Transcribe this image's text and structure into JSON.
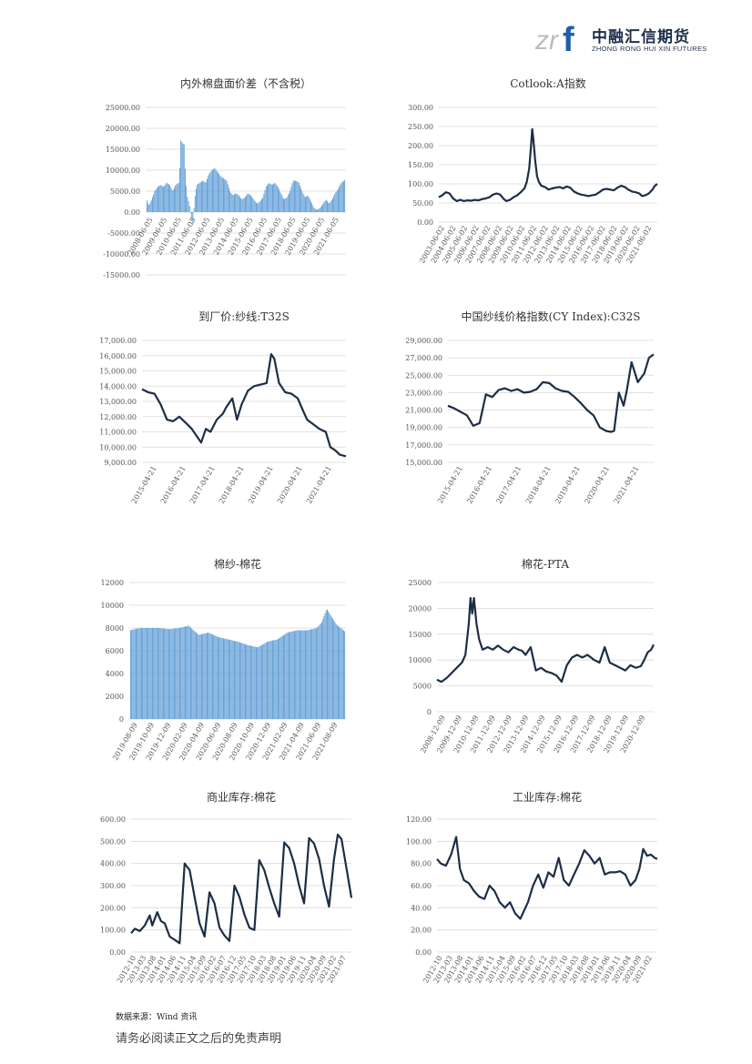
{
  "header": {
    "logo_mark": "zrf",
    "company_cn": "中融汇信期货",
    "company_en": "ZHONG RONG HUI XIN FUTURES",
    "colors": {
      "mark_gray": "#b9bcc2",
      "mark_blue": "#1f5fa8",
      "text": "#1f2e4a"
    }
  },
  "footer": {
    "source": "数据来源：Wind 资讯",
    "disclaimer": "请务必阅读正文之后的免责声明"
  },
  "chart_data": [
    {
      "id": "c1",
      "type": "bar",
      "title": "内外棉盘面价差（不含税）",
      "color": "#5b9bd5",
      "ylim": [
        -15000,
        25000
      ],
      "yticks": [
        25000,
        20000,
        15000,
        10000,
        5000,
        0,
        -5000,
        -10000,
        -15000
      ],
      "ytick_labels": [
        "25000.00",
        "20000.00",
        "15000.00",
        "10000.00",
        "5000.00",
        "0.00",
        "-5000.00",
        "-10000.00",
        "-15000.00"
      ],
      "x_start": 2008.43,
      "x_end": 2021.75,
      "xtick_labels": [
        "2008-06-05",
        "2009-06-05",
        "2010-06-05",
        "2011-06-05",
        "2012-06-05",
        "2013-06-05",
        "2014-06-05",
        "2015-06-05",
        "2016-06-05",
        "2017-06-05",
        "2018-06-05",
        "2019-06-05",
        "2020-06-05",
        "2021-06-05"
      ],
      "x": [
        2008.43,
        2008.6,
        2008.8,
        2009.0,
        2009.2,
        2009.4,
        2009.6,
        2009.8,
        2010.0,
        2010.2,
        2010.4,
        2010.6,
        2010.7,
        2010.75,
        2010.85,
        2010.95,
        2011.05,
        2011.15,
        2011.3,
        2011.45,
        2011.55,
        2011.65,
        2011.8,
        2012.0,
        2012.2,
        2012.4,
        2012.6,
        2012.8,
        2013.0,
        2013.2,
        2013.4,
        2013.6,
        2013.8,
        2014.0,
        2014.2,
        2014.4,
        2014.6,
        2014.8,
        2015.0,
        2015.2,
        2015.4,
        2015.6,
        2015.8,
        2016.0,
        2016.2,
        2016.4,
        2016.6,
        2016.8,
        2017.0,
        2017.2,
        2017.4,
        2017.6,
        2017.8,
        2018.0,
        2018.2,
        2018.4,
        2018.6,
        2018.8,
        2019.0,
        2019.2,
        2019.4,
        2019.6,
        2019.8,
        2020.0,
        2020.2,
        2020.4,
        2020.6,
        2020.8,
        2021.0,
        2021.2,
        2021.4,
        2021.6,
        2021.75
      ],
      "values": [
        3500,
        1500,
        3000,
        5000,
        6000,
        6500,
        6000,
        7000,
        6500,
        5000,
        6500,
        7000,
        12000,
        18000,
        16000,
        17000,
        9000,
        4000,
        2000,
        -1500,
        -3000,
        3000,
        6500,
        7000,
        7500,
        7000,
        9000,
        10000,
        10500,
        9500,
        8500,
        8000,
        7500,
        5000,
        4000,
        4500,
        4000,
        3000,
        3500,
        4500,
        4000,
        3000,
        2000,
        2500,
        3500,
        6000,
        7000,
        6500,
        7000,
        6000,
        4500,
        3000,
        3500,
        5000,
        7500,
        7500,
        7000,
        5000,
        3500,
        4000,
        2500,
        1000,
        500,
        1000,
        2000,
        3000,
        2000,
        3000,
        4500,
        5500,
        7000,
        7500,
        8000
      ]
    },
    {
      "id": "c2",
      "type": "line",
      "title": "Cotlook:A指数",
      "color": "#1c2e45",
      "ylim": [
        0,
        300
      ],
      "yticks": [
        0,
        50,
        100,
        150,
        200,
        250,
        300
      ],
      "ytick_labels": [
        "0.00",
        "50.00",
        "100.00",
        "150.00",
        "200.00",
        "250.00",
        "300.00"
      ],
      "x_start": 2003.42,
      "x_end": 2021.5,
      "xtick_labels": [
        "2003-06-02",
        "2004-06-02",
        "2005-06-02",
        "2006-06-02",
        "2007-06-02",
        "2008-06-02",
        "2009-06-02",
        "2010-06-02",
        "2011-06-02",
        "2012-06-02",
        "2013-06-02",
        "2014-06-02",
        "2015-06-02",
        "2016-06-02",
        "2017-06-02",
        "2018-06-02",
        "2019-06-02",
        "2020-06-02",
        "2021-06-02"
      ],
      "x": [
        2003.42,
        2003.7,
        2004.0,
        2004.3,
        2004.6,
        2004.9,
        2005.2,
        2005.5,
        2005.8,
        2006.1,
        2006.4,
        2006.7,
        2007.0,
        2007.3,
        2007.6,
        2007.9,
        2008.2,
        2008.5,
        2008.8,
        2009.0,
        2009.3,
        2009.6,
        2009.9,
        2010.2,
        2010.5,
        2010.7,
        2010.9,
        2011.05,
        2011.15,
        2011.25,
        2011.4,
        2011.55,
        2011.7,
        2011.9,
        2012.2,
        2012.5,
        2012.8,
        2013.1,
        2013.4,
        2013.7,
        2014.0,
        2014.3,
        2014.6,
        2014.9,
        2015.2,
        2015.5,
        2015.8,
        2016.1,
        2016.4,
        2016.7,
        2017.0,
        2017.3,
        2017.6,
        2017.9,
        2018.2,
        2018.5,
        2018.8,
        2019.1,
        2019.4,
        2019.7,
        2020.0,
        2020.25,
        2020.5,
        2020.8,
        2021.1,
        2021.3,
        2021.5
      ],
      "values": [
        65,
        70,
        78,
        75,
        62,
        55,
        58,
        55,
        57,
        56,
        58,
        57,
        60,
        62,
        65,
        72,
        75,
        72,
        60,
        55,
        58,
        65,
        70,
        78,
        88,
        105,
        140,
        200,
        243,
        215,
        160,
        120,
        105,
        95,
        92,
        85,
        88,
        90,
        92,
        88,
        93,
        90,
        80,
        75,
        72,
        70,
        68,
        70,
        72,
        78,
        85,
        87,
        85,
        83,
        90,
        95,
        92,
        85,
        80,
        78,
        75,
        68,
        70,
        75,
        85,
        95,
        100
      ]
    },
    {
      "id": "c3",
      "type": "line",
      "title": "到厂价:纱线:T32S",
      "color": "#1c2e45",
      "ylim": [
        9000,
        17000
      ],
      "yticks": [
        9000,
        10000,
        11000,
        12000,
        13000,
        14000,
        15000,
        16000,
        17000
      ],
      "ytick_labels": [
        "9,000.00",
        "10,000.00",
        "11,000.00",
        "12,000.00",
        "13,000.00",
        "14,000.00",
        "15,000.00",
        "16,000.00",
        "17,000.00"
      ],
      "x_start": 2015.3,
      "x_end": 2021.85,
      "xtick_labels": [
        "2015-04-21",
        "2016-04-21",
        "2017-04-21",
        "2018-04-21",
        "2019-04-21",
        "2020-04-21",
        "2021-04-21"
      ],
      "x": [
        2015.3,
        2015.5,
        2015.7,
        2015.9,
        2016.1,
        2016.3,
        2016.5,
        2016.7,
        2016.9,
        2017.0,
        2017.2,
        2017.35,
        2017.5,
        2017.7,
        2017.9,
        2018.0,
        2018.2,
        2018.35,
        2018.5,
        2018.7,
        2018.9,
        2019.1,
        2019.3,
        2019.45,
        2019.55,
        2019.7,
        2019.9,
        2020.1,
        2020.3,
        2020.45,
        2020.6,
        2020.8,
        2021.0,
        2021.2,
        2021.35,
        2021.5,
        2021.65,
        2021.85
      ],
      "values": [
        13800,
        13600,
        13500,
        12800,
        11800,
        11700,
        12000,
        11600,
        11200,
        10900,
        10300,
        11200,
        11000,
        11800,
        12200,
        12600,
        13200,
        11800,
        12800,
        13700,
        14000,
        14100,
        14200,
        16100,
        15800,
        14200,
        13600,
        13500,
        13200,
        12500,
        11800,
        11500,
        11200,
        11000,
        10000,
        9800,
        9500,
        9400
      ]
    },
    {
      "id": "c4",
      "type": "line",
      "title": "中国纱线价格指数(CY Index):C32S",
      "color": "#1c2e45",
      "ylim": [
        15000,
        29000
      ],
      "yticks": [
        15000,
        17000,
        19000,
        21000,
        23000,
        25000,
        27000,
        29000
      ],
      "ytick_labels": [
        "15,000.00",
        "17,000.00",
        "19,000.00",
        "21,000.00",
        "23,000.00",
        "25,000.00",
        "27,000.00",
        "29,000.00"
      ],
      "x_start": 2015.3,
      "x_end": 2021.8,
      "xtick_labels": [
        "2015-04-21",
        "2016-04-21",
        "2017-04-21",
        "2018-04-21",
        "2019-04-21",
        "2020-04-21",
        "2021-04-21"
      ],
      "x": [
        2015.3,
        2015.5,
        2015.7,
        2015.9,
        2016.1,
        2016.3,
        2016.5,
        2016.7,
        2016.9,
        2017.1,
        2017.3,
        2017.5,
        2017.7,
        2017.9,
        2018.1,
        2018.3,
        2018.5,
        2018.7,
        2018.9,
        2019.1,
        2019.3,
        2019.5,
        2019.7,
        2019.9,
        2020.1,
        2020.3,
        2020.45,
        2020.55,
        2020.7,
        2020.85,
        2020.95,
        2021.1,
        2021.3,
        2021.5,
        2021.65,
        2021.8
      ],
      "values": [
        21500,
        21200,
        20800,
        20400,
        19200,
        19500,
        22800,
        22500,
        23300,
        23500,
        23200,
        23400,
        23000,
        23100,
        23400,
        24200,
        24100,
        23500,
        23200,
        23100,
        22500,
        21800,
        21000,
        20400,
        19000,
        18600,
        18500,
        18600,
        23000,
        21500,
        23200,
        26500,
        24200,
        25200,
        27000,
        27400
      ]
    },
    {
      "id": "c5",
      "type": "bar",
      "title": "棉纱-棉花",
      "color": "#5b9bd5",
      "ylim": [
        0,
        12000
      ],
      "yticks": [
        0,
        2000,
        4000,
        6000,
        8000,
        10000,
        12000
      ],
      "ytick_labels": [
        "0",
        "2000",
        "4000",
        "6000",
        "8000",
        "10000",
        "12000"
      ],
      "x_start": 2019.6,
      "x_end": 2021.8,
      "xtick_labels": [
        "2019-08-09",
        "2019-10-09",
        "2019-12-09",
        "2020-02-09",
        "2020-04-09",
        "2020-06-09",
        "2020-08-09",
        "2020-10-09",
        "2020-12-09",
        "2021-02-09",
        "2021-04-09",
        "2021-06-09",
        "2021-08-09"
      ],
      "x": [
        2019.6,
        2019.7,
        2019.8,
        2019.9,
        2020.0,
        2020.1,
        2020.2,
        2020.3,
        2020.4,
        2020.5,
        2020.6,
        2020.7,
        2020.8,
        2020.9,
        2021.0,
        2021.1,
        2021.2,
        2021.3,
        2021.4,
        2021.5,
        2021.55,
        2021.6,
        2021.7,
        2021.8
      ],
      "values": [
        7800,
        8000,
        8000,
        8000,
        7900,
        8000,
        8200,
        7400,
        7600,
        7200,
        7000,
        6800,
        6500,
        6300,
        6800,
        7000,
        7600,
        7800,
        7800,
        8000,
        8500,
        9700,
        8300,
        7600
      ]
    },
    {
      "id": "c6",
      "type": "line",
      "title": "棉花-PTA",
      "color": "#1c2e45",
      "ylim": [
        0,
        25000
      ],
      "yticks": [
        0,
        5000,
        10000,
        15000,
        20000,
        25000
      ],
      "ytick_labels": [
        "0",
        "5000",
        "10000",
        "15000",
        "20000",
        "25000"
      ],
      "x_start": 2008.95,
      "x_end": 2021.55,
      "xtick_labels": [
        "2008-12-09",
        "2009-12-09",
        "2010-12-09",
        "2011-12-09",
        "2012-12-09",
        "2013-12-09",
        "2014-12-09",
        "2015-12-09",
        "2016-12-09",
        "2017-12-09",
        "2018-12-09",
        "2019-12-09",
        "2020-12-09"
      ],
      "x": [
        2008.95,
        2009.2,
        2009.5,
        2009.8,
        2010.1,
        2010.4,
        2010.6,
        2010.8,
        2010.9,
        2011.0,
        2011.1,
        2011.25,
        2011.4,
        2011.6,
        2011.9,
        2012.2,
        2012.5,
        2012.8,
        2013.1,
        2013.4,
        2013.7,
        2013.9,
        2014.1,
        2014.4,
        2014.7,
        2015.0,
        2015.3,
        2015.6,
        2015.9,
        2016.2,
        2016.5,
        2016.8,
        2017.1,
        2017.4,
        2017.7,
        2017.9,
        2018.1,
        2018.4,
        2018.7,
        2019.0,
        2019.3,
        2019.6,
        2019.9,
        2020.2,
        2020.5,
        2020.8,
        2021.0,
        2021.2,
        2021.4,
        2021.55
      ],
      "values": [
        6200,
        5800,
        6500,
        7500,
        8500,
        9500,
        11000,
        17000,
        22000,
        19000,
        22000,
        17000,
        14000,
        12000,
        12500,
        12000,
        12800,
        12000,
        11500,
        12500,
        12000,
        11800,
        11000,
        12500,
        8000,
        8500,
        7800,
        7500,
        7000,
        5800,
        9000,
        10500,
        11000,
        10500,
        11000,
        10500,
        10000,
        9500,
        12500,
        9500,
        9000,
        8500,
        8000,
        9000,
        8500,
        8800,
        10000,
        11500,
        12000,
        13000
      ]
    },
    {
      "id": "c7",
      "type": "line",
      "title": "商业库存:棉花",
      "color": "#1c2e45",
      "ylim": [
        0,
        600
      ],
      "yticks": [
        0,
        100,
        200,
        300,
        400,
        500,
        600
      ],
      "ytick_labels": [
        "0.00",
        "100.00",
        "200.00",
        "300.00",
        "400.00",
        "500.00",
        "600.00"
      ],
      "x_start": 2012.75,
      "x_end": 2021.6,
      "xtick_labels": [
        "2012-10",
        "2013-03",
        "2013-08",
        "2014-01",
        "2014-06",
        "2014-11",
        "2015-04",
        "2015-09",
        "2016-02",
        "2016-07",
        "2016-12",
        "2017-05",
        "2017-10",
        "2018-03",
        "2018-08",
        "2019-01",
        "2019-06",
        "2019-11",
        "2020-04",
        "2020-09",
        "2021-02",
        "2021-07"
      ],
      "x": [
        2012.75,
        2012.9,
        2013.1,
        2013.3,
        2013.5,
        2013.6,
        2013.8,
        2013.95,
        2014.1,
        2014.3,
        2014.5,
        2014.7,
        2014.9,
        2015.1,
        2015.3,
        2015.5,
        2015.7,
        2015.9,
        2016.1,
        2016.3,
        2016.5,
        2016.7,
        2016.9,
        2017.1,
        2017.3,
        2017.5,
        2017.7,
        2017.9,
        2018.1,
        2018.3,
        2018.5,
        2018.7,
        2018.9,
        2019.1,
        2019.3,
        2019.5,
        2019.7,
        2019.9,
        2020.1,
        2020.3,
        2020.5,
        2020.7,
        2020.9,
        2021.05,
        2021.2,
        2021.4,
        2021.6
      ],
      "values": [
        85,
        105,
        95,
        120,
        165,
        120,
        180,
        140,
        130,
        70,
        55,
        40,
        400,
        370,
        250,
        130,
        70,
        270,
        220,
        110,
        75,
        50,
        300,
        250,
        170,
        110,
        100,
        415,
        370,
        290,
        220,
        160,
        495,
        470,
        400,
        300,
        220,
        515,
        490,
        420,
        300,
        205,
        420,
        530,
        510,
        380,
        245
      ]
    },
    {
      "id": "c8",
      "type": "line",
      "title": "工业库存:棉花",
      "color": "#1c2e45",
      "ylim": [
        0,
        120
      ],
      "yticks": [
        0,
        20,
        40,
        60,
        80,
        100,
        120
      ],
      "ytick_labels": [
        "0.00",
        "20.00",
        "40.00",
        "60.00",
        "80.00",
        "100.00",
        "120.00"
      ],
      "x_start": 2012.75,
      "x_end": 2021.35,
      "xtick_labels": [
        "2012-10",
        "2013-03",
        "2013-08",
        "2014-01",
        "2014-06",
        "2014-11",
        "2015-04",
        "2015-09",
        "2016-02",
        "2016-07",
        "2016-12",
        "2017-05",
        "2017-10",
        "2018-03",
        "2018-08",
        "2019-01",
        "2019-06",
        "2019-11",
        "2020-04",
        "2020-09",
        "2021-02"
      ],
      "x": [
        2012.75,
        2012.9,
        2013.1,
        2013.3,
        2013.5,
        2013.65,
        2013.8,
        2014.0,
        2014.2,
        2014.4,
        2014.6,
        2014.8,
        2015.0,
        2015.2,
        2015.4,
        2015.6,
        2015.8,
        2016.0,
        2016.1,
        2016.3,
        2016.5,
        2016.7,
        2016.9,
        2017.1,
        2017.3,
        2017.5,
        2017.7,
        2017.9,
        2018.1,
        2018.3,
        2018.5,
        2018.7,
        2018.9,
        2019.1,
        2019.3,
        2019.5,
        2019.7,
        2019.9,
        2020.1,
        2020.3,
        2020.5,
        2020.65,
        2020.8,
        2020.95,
        2021.1,
        2021.25,
        2021.35
      ],
      "values": [
        84,
        80,
        78,
        88,
        104,
        75,
        65,
        62,
        55,
        50,
        48,
        60,
        55,
        45,
        40,
        45,
        35,
        30,
        35,
        45,
        60,
        70,
        58,
        72,
        68,
        85,
        65,
        60,
        70,
        80,
        92,
        87,
        80,
        85,
        70,
        72,
        72,
        73,
        70,
        60,
        65,
        75,
        93,
        87,
        88,
        85,
        84
      ]
    }
  ]
}
